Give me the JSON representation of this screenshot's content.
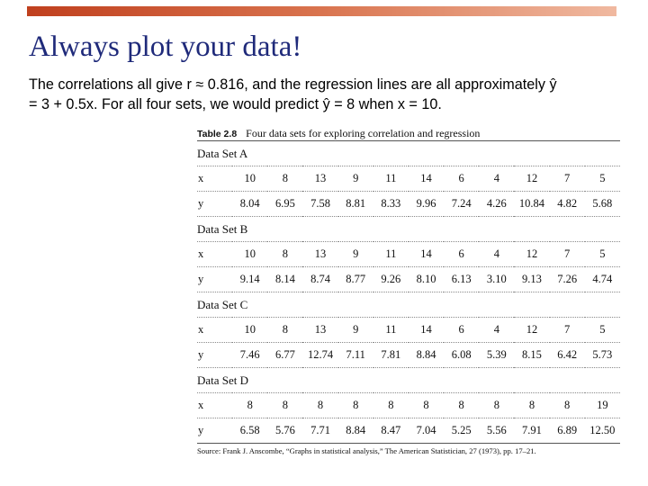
{
  "slide": {
    "title": "Always plot your data!",
    "body_line1": "The correlations all give r ≈ 0.816, and the regression lines are all approximately ŷ",
    "body_line2": "= 3 + 0.5x. For all four sets, we would predict ŷ = 8 when x = 10."
  },
  "table": {
    "number": "Table 2.8",
    "title": "Four data sets for exploring correlation and regression",
    "sets": [
      {
        "name": "Data Set A",
        "x": [
          "10",
          "8",
          "13",
          "9",
          "11",
          "14",
          "6",
          "4",
          "12",
          "7",
          "5"
        ],
        "y": [
          "8.04",
          "6.95",
          "7.58",
          "8.81",
          "8.33",
          "9.96",
          "7.24",
          "4.26",
          "10.84",
          "4.82",
          "5.68"
        ]
      },
      {
        "name": "Data Set B",
        "x": [
          "10",
          "8",
          "13",
          "9",
          "11",
          "14",
          "6",
          "4",
          "12",
          "7",
          "5"
        ],
        "y": [
          "9.14",
          "8.14",
          "8.74",
          "8.77",
          "9.26",
          "8.10",
          "6.13",
          "3.10",
          "9.13",
          "7.26",
          "4.74"
        ]
      },
      {
        "name": "Data Set C",
        "x": [
          "10",
          "8",
          "13",
          "9",
          "11",
          "14",
          "6",
          "4",
          "12",
          "7",
          "5"
        ],
        "y": [
          "7.46",
          "6.77",
          "12.74",
          "7.11",
          "7.81",
          "8.84",
          "6.08",
          "5.39",
          "8.15",
          "6.42",
          "5.73"
        ]
      },
      {
        "name": "Data Set D",
        "x": [
          "8",
          "8",
          "8",
          "8",
          "8",
          "8",
          "8",
          "8",
          "8",
          "8",
          "19"
        ],
        "y": [
          "6.58",
          "5.76",
          "7.71",
          "8.84",
          "8.47",
          "7.04",
          "5.25",
          "5.56",
          "7.91",
          "6.89",
          "12.50"
        ]
      }
    ],
    "var_x": "x",
    "var_y": "y",
    "source": "Source: Frank J. Anscombe, “Graphs in statistical analysis,” The American Statistician, 27 (1973), pp. 17–21."
  }
}
